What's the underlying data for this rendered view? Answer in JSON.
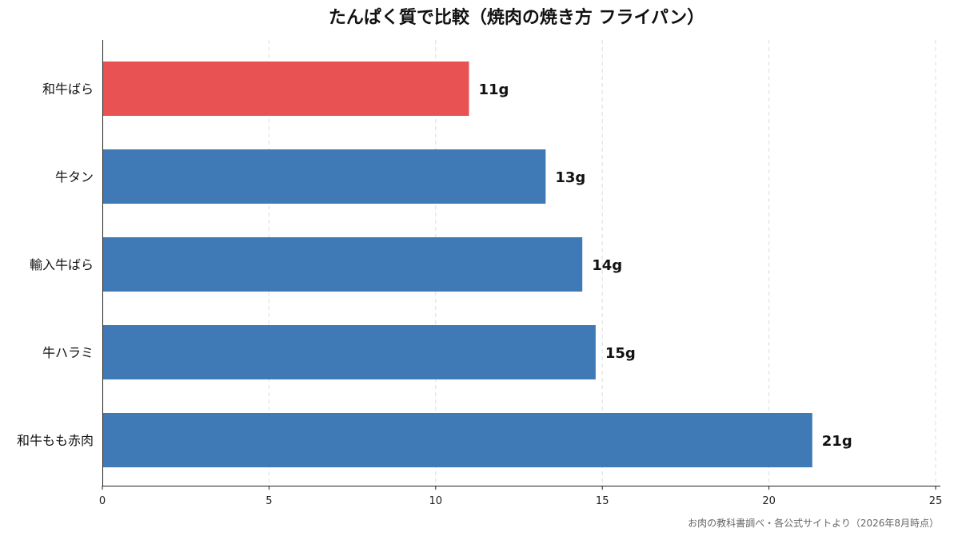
{
  "chart_data": {
    "type": "bar",
    "orientation": "horizontal",
    "title": "たんぱく質で比較（焼肉の焼き方 フライパン）",
    "xlabel": "",
    "ylabel": "",
    "categories": [
      "和牛ばら",
      "牛タン",
      "輸入牛ばら",
      "牛ハラミ",
      "和牛もも赤肉"
    ],
    "values": [
      11,
      13.3,
      14.4,
      14.8,
      21.3
    ],
    "data_labels": [
      "11g",
      "13g",
      "14g",
      "15g",
      "21g"
    ],
    "highlight_index": 0,
    "xlim": [
      0,
      25
    ],
    "xticks": [
      0,
      5,
      10,
      15,
      20,
      25
    ],
    "grid": "x-dashed",
    "colors": {
      "default": "#3f7ab7",
      "highlight": "#e85252"
    },
    "source_note": "お肉の教科書調べ・各公式サイトより（2026年8月時点）"
  }
}
